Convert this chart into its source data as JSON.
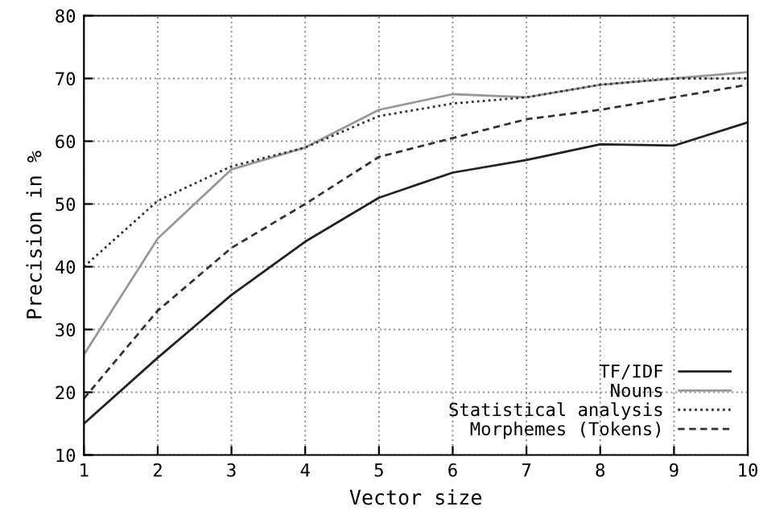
{
  "chart_data": {
    "type": "line",
    "xlabel": "Vector size",
    "ylabel": "Precision in %",
    "x": [
      1,
      2,
      3,
      4,
      5,
      6,
      7,
      8,
      9,
      10
    ],
    "series": [
      {
        "name": "TF/IDF",
        "color": "#222222",
        "line_style": "solid",
        "values": [
          15,
          25.5,
          35.5,
          44,
          51,
          55,
          57,
          59.5,
          59.3,
          63
        ]
      },
      {
        "name": "Nouns",
        "color": "#999999",
        "line_style": "solid",
        "values": [
          26,
          44.5,
          55.5,
          59,
          65,
          67.5,
          67,
          69,
          70,
          71
        ]
      },
      {
        "name": "Statistical analysis",
        "color": "#333333",
        "line_style": "dotted",
        "values": [
          40,
          50.5,
          56,
          59,
          64,
          66,
          67,
          69,
          70,
          70
        ]
      },
      {
        "name": "Morphemes (Tokens)",
        "color": "#333333",
        "line_style": "dashed",
        "values": [
          19,
          33,
          43,
          50,
          57.5,
          60.5,
          63.5,
          65,
          67,
          69
        ]
      }
    ],
    "xlim": [
      1,
      10
    ],
    "ylim": [
      10,
      80
    ],
    "xticks": [
      1,
      2,
      3,
      4,
      5,
      6,
      7,
      8,
      9,
      10
    ],
    "yticks": [
      10,
      20,
      30,
      40,
      50,
      60,
      70,
      80
    ],
    "grid": true,
    "legend": "bottom right",
    "marker": "none"
  }
}
